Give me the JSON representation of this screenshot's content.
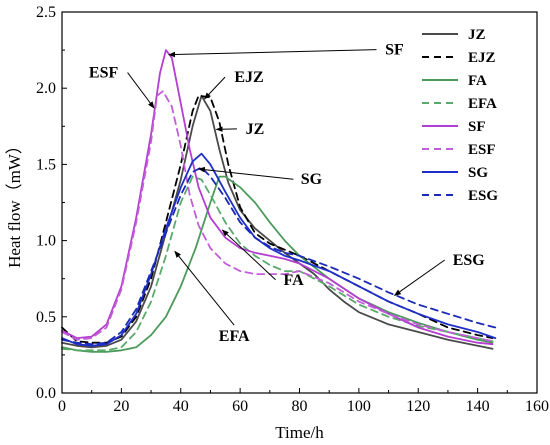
{
  "chart_data": {
    "type": "line",
    "xlabel": "Time/h",
    "ylabel": "Heat flow（mW）",
    "xlim": [
      0,
      160
    ],
    "ylim": [
      0.0,
      2.5
    ],
    "xticks": [
      0,
      20,
      40,
      60,
      80,
      100,
      120,
      140,
      160
    ],
    "yticks": [
      0.0,
      0.5,
      1.0,
      1.5,
      2.0,
      2.5
    ],
    "ytick_labels": [
      "0.0",
      "0.5",
      "1.0",
      "1.5",
      "2.0",
      "2.5"
    ],
    "grid": false,
    "legend_position": "top-right",
    "series": [
      {
        "name": "JZ",
        "color": "#4a4a4a",
        "dash": "solid",
        "points": [
          [
            0,
            0.33
          ],
          [
            5,
            0.31
          ],
          [
            10,
            0.3
          ],
          [
            15,
            0.31
          ],
          [
            20,
            0.35
          ],
          [
            25,
            0.47
          ],
          [
            30,
            0.7
          ],
          [
            35,
            1.05
          ],
          [
            40,
            1.4
          ],
          [
            44,
            1.75
          ],
          [
            47,
            1.95
          ],
          [
            50,
            1.85
          ],
          [
            53,
            1.6
          ],
          [
            56,
            1.38
          ],
          [
            60,
            1.2
          ],
          [
            65,
            1.08
          ],
          [
            70,
            1.0
          ],
          [
            75,
            0.92
          ],
          [
            80,
            0.85
          ],
          [
            85,
            0.78
          ],
          [
            90,
            0.68
          ],
          [
            95,
            0.6
          ],
          [
            100,
            0.53
          ],
          [
            110,
            0.45
          ],
          [
            120,
            0.4
          ],
          [
            130,
            0.35
          ],
          [
            140,
            0.31
          ],
          [
            145,
            0.29
          ]
        ]
      },
      {
        "name": "EJZ",
        "color": "#000000",
        "dash": "dashed",
        "points": [
          [
            0,
            0.43
          ],
          [
            5,
            0.34
          ],
          [
            10,
            0.33
          ],
          [
            15,
            0.33
          ],
          [
            20,
            0.37
          ],
          [
            25,
            0.5
          ],
          [
            30,
            0.75
          ],
          [
            35,
            1.12
          ],
          [
            40,
            1.5
          ],
          [
            44,
            1.85
          ],
          [
            46,
            1.95
          ],
          [
            50,
            1.94
          ],
          [
            53,
            1.78
          ],
          [
            56,
            1.5
          ],
          [
            60,
            1.22
          ],
          [
            65,
            1.05
          ],
          [
            70,
            0.98
          ],
          [
            75,
            0.94
          ],
          [
            80,
            0.9
          ],
          [
            90,
            0.8
          ],
          [
            100,
            0.7
          ],
          [
            110,
            0.6
          ],
          [
            120,
            0.52
          ],
          [
            130,
            0.43
          ],
          [
            140,
            0.38
          ],
          [
            145,
            0.36
          ]
        ]
      },
      {
        "name": "FA",
        "color": "#4c9a5c",
        "dash": "solid",
        "points": [
          [
            0,
            0.3
          ],
          [
            5,
            0.28
          ],
          [
            10,
            0.27
          ],
          [
            15,
            0.27
          ],
          [
            20,
            0.28
          ],
          [
            25,
            0.3
          ],
          [
            30,
            0.38
          ],
          [
            35,
            0.5
          ],
          [
            40,
            0.7
          ],
          [
            45,
            0.95
          ],
          [
            50,
            1.25
          ],
          [
            53,
            1.42
          ],
          [
            55,
            1.42
          ],
          [
            60,
            1.35
          ],
          [
            65,
            1.25
          ],
          [
            70,
            1.12
          ],
          [
            75,
            1.0
          ],
          [
            80,
            0.9
          ],
          [
            90,
            0.75
          ],
          [
            100,
            0.62
          ],
          [
            110,
            0.53
          ],
          [
            120,
            0.46
          ],
          [
            130,
            0.4
          ],
          [
            140,
            0.35
          ],
          [
            145,
            0.33
          ]
        ]
      },
      {
        "name": "EFA",
        "color": "#5aaa6c",
        "dash": "dashed",
        "points": [
          [
            0,
            0.29
          ],
          [
            5,
            0.28
          ],
          [
            10,
            0.28
          ],
          [
            15,
            0.28
          ],
          [
            20,
            0.3
          ],
          [
            25,
            0.4
          ],
          [
            30,
            0.6
          ],
          [
            35,
            0.9
          ],
          [
            40,
            1.25
          ],
          [
            44,
            1.42
          ],
          [
            47,
            1.4
          ],
          [
            50,
            1.3
          ],
          [
            55,
            1.12
          ],
          [
            60,
            0.98
          ],
          [
            65,
            0.9
          ],
          [
            70,
            0.84
          ],
          [
            75,
            0.8
          ],
          [
            80,
            0.8
          ],
          [
            90,
            0.7
          ],
          [
            100,
            0.58
          ],
          [
            110,
            0.5
          ],
          [
            120,
            0.44
          ],
          [
            130,
            0.4
          ],
          [
            140,
            0.36
          ],
          [
            145,
            0.34
          ]
        ]
      },
      {
        "name": "SF",
        "color": "#b43ed0",
        "dash": "solid",
        "points": [
          [
            0,
            0.41
          ],
          [
            5,
            0.36
          ],
          [
            10,
            0.37
          ],
          [
            15,
            0.45
          ],
          [
            20,
            0.7
          ],
          [
            25,
            1.15
          ],
          [
            30,
            1.7
          ],
          [
            33,
            2.1
          ],
          [
            35,
            2.25
          ],
          [
            37,
            2.2
          ],
          [
            40,
            1.9
          ],
          [
            43,
            1.6
          ],
          [
            46,
            1.35
          ],
          [
            50,
            1.15
          ],
          [
            55,
            1.02
          ],
          [
            60,
            0.95
          ],
          [
            65,
            0.92
          ],
          [
            70,
            0.9
          ],
          [
            75,
            0.88
          ],
          [
            80,
            0.85
          ],
          [
            90,
            0.75
          ],
          [
            100,
            0.62
          ],
          [
            110,
            0.52
          ],
          [
            120,
            0.43
          ],
          [
            130,
            0.37
          ],
          [
            140,
            0.33
          ],
          [
            145,
            0.32
          ]
        ]
      },
      {
        "name": "ESF",
        "color": "#c15ed8",
        "dash": "dashed",
        "points": [
          [
            0,
            0.4
          ],
          [
            5,
            0.35
          ],
          [
            10,
            0.36
          ],
          [
            15,
            0.43
          ],
          [
            20,
            0.68
          ],
          [
            25,
            1.12
          ],
          [
            30,
            1.65
          ],
          [
            32,
            1.95
          ],
          [
            34,
            1.98
          ],
          [
            37,
            1.88
          ],
          [
            40,
            1.62
          ],
          [
            43,
            1.3
          ],
          [
            46,
            1.1
          ],
          [
            50,
            0.95
          ],
          [
            55,
            0.85
          ],
          [
            60,
            0.8
          ],
          [
            65,
            0.78
          ],
          [
            70,
            0.78
          ],
          [
            75,
            0.78
          ],
          [
            80,
            0.8
          ],
          [
            90,
            0.72
          ],
          [
            100,
            0.6
          ],
          [
            110,
            0.52
          ],
          [
            120,
            0.45
          ],
          [
            130,
            0.4
          ],
          [
            140,
            0.36
          ],
          [
            145,
            0.34
          ]
        ]
      },
      {
        "name": "SG",
        "color": "#1f2fc8",
        "dash": "solid",
        "points": [
          [
            0,
            0.36
          ],
          [
            5,
            0.32
          ],
          [
            10,
            0.31
          ],
          [
            15,
            0.32
          ],
          [
            20,
            0.38
          ],
          [
            25,
            0.52
          ],
          [
            30,
            0.78
          ],
          [
            35,
            1.08
          ],
          [
            40,
            1.35
          ],
          [
            44,
            1.52
          ],
          [
            47,
            1.57
          ],
          [
            50,
            1.5
          ],
          [
            55,
            1.32
          ],
          [
            60,
            1.15
          ],
          [
            65,
            1.02
          ],
          [
            70,
            0.95
          ],
          [
            75,
            0.9
          ],
          [
            80,
            0.87
          ],
          [
            90,
            0.8
          ],
          [
            100,
            0.7
          ],
          [
            110,
            0.6
          ],
          [
            120,
            0.52
          ],
          [
            130,
            0.45
          ],
          [
            140,
            0.4
          ],
          [
            146,
            0.36
          ]
        ]
      },
      {
        "name": "ESG",
        "color": "#1a2ab8",
        "dash": "dashed",
        "points": [
          [
            0,
            0.35
          ],
          [
            5,
            0.33
          ],
          [
            10,
            0.32
          ],
          [
            15,
            0.33
          ],
          [
            20,
            0.4
          ],
          [
            25,
            0.55
          ],
          [
            30,
            0.8
          ],
          [
            35,
            1.05
          ],
          [
            40,
            1.3
          ],
          [
            44,
            1.45
          ],
          [
            47,
            1.48
          ],
          [
            50,
            1.42
          ],
          [
            55,
            1.28
          ],
          [
            60,
            1.12
          ],
          [
            65,
            1.02
          ],
          [
            70,
            0.96
          ],
          [
            75,
            0.92
          ],
          [
            80,
            0.9
          ],
          [
            90,
            0.83
          ],
          [
            100,
            0.75
          ],
          [
            110,
            0.66
          ],
          [
            120,
            0.58
          ],
          [
            130,
            0.52
          ],
          [
            140,
            0.46
          ],
          [
            146,
            0.43
          ]
        ]
      }
    ],
    "annotations": [
      {
        "text": "SF",
        "label_x": 112,
        "label_y": 2.22,
        "target_x": 36,
        "target_y": 2.22
      },
      {
        "text": "ESF",
        "label_x": 14,
        "label_y": 2.07,
        "target_x": 31,
        "target_y": 1.87
      },
      {
        "text": "EJZ",
        "label_x": 63,
        "label_y": 2.04,
        "target_x": 48,
        "target_y": 1.93
      },
      {
        "text": "JZ",
        "label_x": 65,
        "label_y": 1.7,
        "target_x": 52,
        "target_y": 1.73
      },
      {
        "text": "SG",
        "label_x": 84,
        "label_y": 1.37,
        "target_x": 46,
        "target_y": 1.47
      },
      {
        "text": "FA",
        "label_x": 78,
        "label_y": 0.71,
        "target_x": 54,
        "target_y": 1.07
      },
      {
        "text": "EFA",
        "label_x": 58,
        "label_y": 0.34,
        "target_x": 38,
        "target_y": 0.93
      },
      {
        "text": "ESG",
        "label_x": 137,
        "label_y": 0.84,
        "target_x": 112,
        "target_y": 0.64
      }
    ]
  }
}
